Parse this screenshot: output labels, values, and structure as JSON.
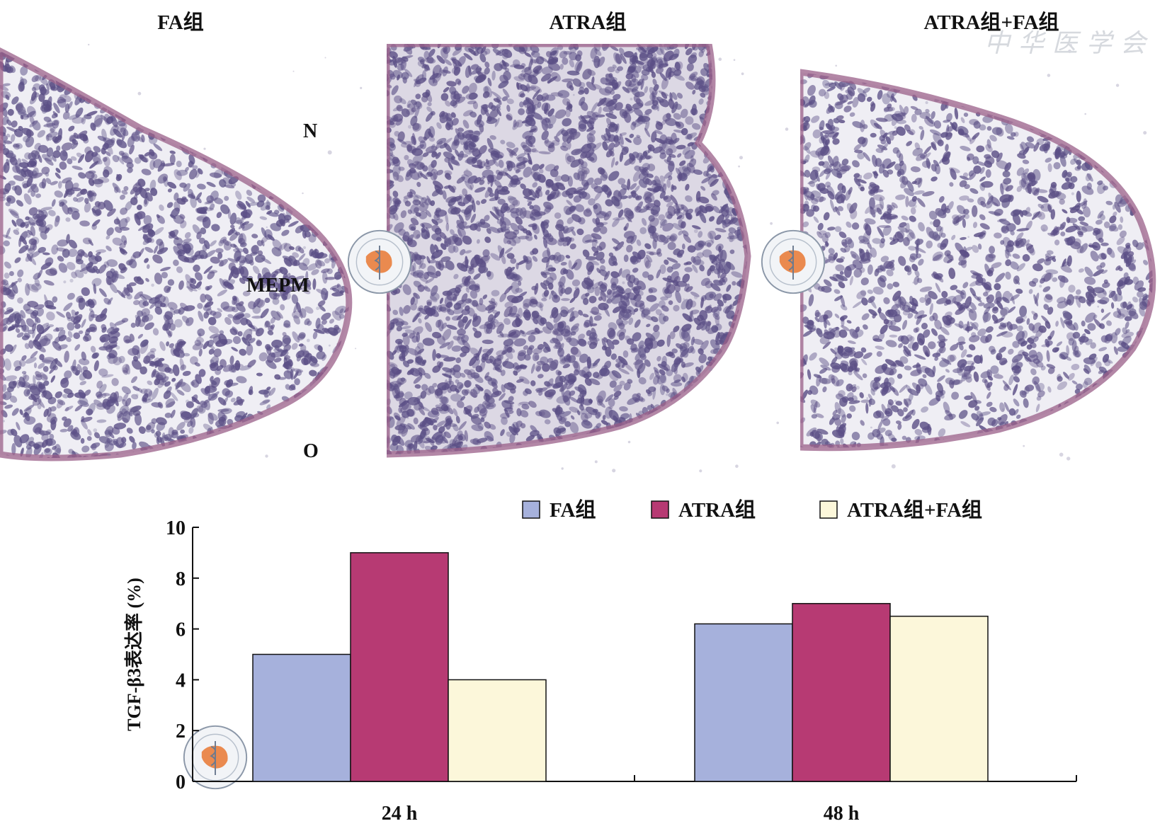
{
  "panels": [
    {
      "title": "FA组"
    },
    {
      "title": "ATRA组"
    },
    {
      "title": "ATRA组+FA组"
    }
  ],
  "tissue_labels": {
    "nasal": "N",
    "mepm": "MEPM",
    "oral": "O"
  },
  "watermark": {
    "text": "中华医学会"
  },
  "colors": {
    "fa": "#a6b1dc",
    "atra": "#b73a73",
    "atra_fa": "#fcf7da",
    "stain_bg": "#efeef4",
    "stain_nuclei": "#5b4f86",
    "stain_edge": "#9a5f88"
  },
  "chart_data": {
    "type": "bar",
    "categories": [
      "24 h",
      "48 h"
    ],
    "series": [
      {
        "name": "FA组",
        "values": [
          5.0,
          6.2
        ]
      },
      {
        "name": "ATRA组",
        "values": [
          9.0,
          7.0
        ]
      },
      {
        "name": "ATRA组+FA组",
        "values": [
          4.0,
          6.5
        ]
      }
    ],
    "ylabel": "TGF-β3表达率 (%)",
    "xlabel": "",
    "ylim": [
      0,
      10
    ],
    "yticks": [
      "0",
      "2",
      "4",
      "6",
      "8",
      "10"
    ],
    "legend": "top"
  }
}
